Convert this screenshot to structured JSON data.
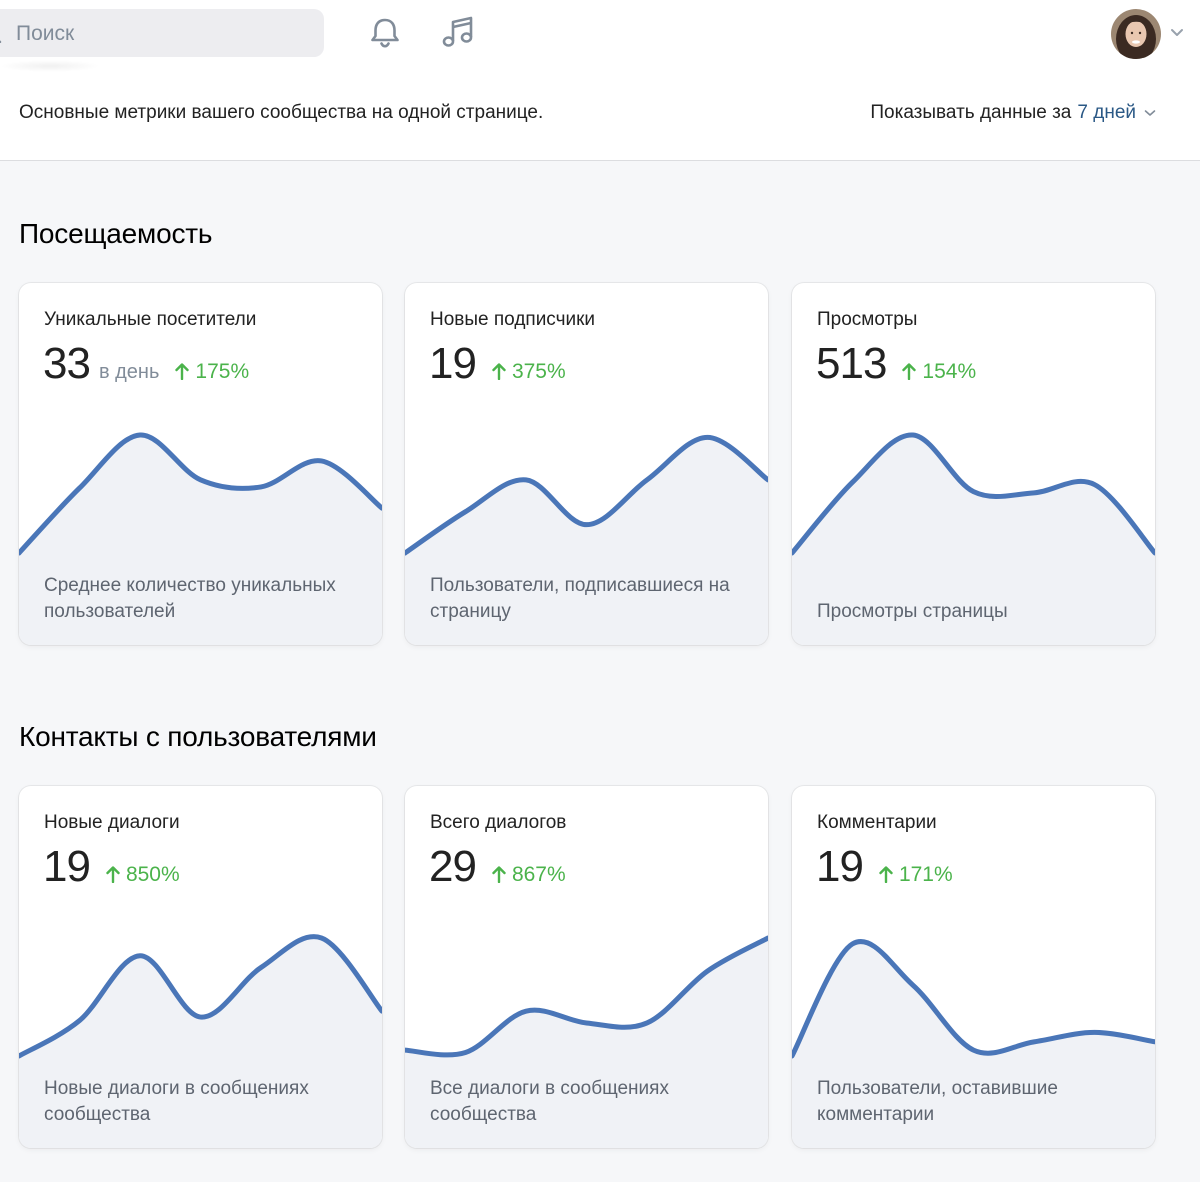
{
  "header": {
    "search_placeholder": "Поиск",
    "bell_icon": "bell-icon",
    "music_icon": "music-icon"
  },
  "subheader": {
    "description": "Основные метрики вашего сообщества на одной странице.",
    "period_label": "Показывать данные за",
    "period_value": "7 дней"
  },
  "sections": [
    {
      "title": "Посещаемость",
      "cards": [
        {
          "title": "Уникальные посетители",
          "value": "33",
          "unit": "в день",
          "delta": "175%",
          "description": "Среднее количество уникальных пользователей",
          "trend": [
            0.0,
            0.55,
            1.0,
            0.62,
            0.56,
            0.78,
            0.38
          ]
        },
        {
          "title": "Новые подписчики",
          "value": "19",
          "unit": "",
          "delta": "375%",
          "description": "Пользователи, подписавшиеся на страницу",
          "trend": [
            0.0,
            0.35,
            0.62,
            0.24,
            0.62,
            0.98,
            0.62
          ]
        },
        {
          "title": "Просмотры",
          "value": "513",
          "unit": "",
          "delta": "154%",
          "description": "Просмотры страницы",
          "trend": [
            0.0,
            0.6,
            1.0,
            0.52,
            0.51,
            0.58,
            0.0
          ]
        }
      ]
    },
    {
      "title": "Контакты с пользователями",
      "cards": [
        {
          "title": "Новые диалоги",
          "value": "19",
          "unit": "",
          "delta": "850%",
          "description": "Новые диалоги в сообщениях сообщества",
          "trend": [
            0.0,
            0.3,
            0.85,
            0.33,
            0.75,
            1.0,
            0.38
          ]
        },
        {
          "title": "Всего диалогов",
          "value": "29",
          "unit": "",
          "delta": "867%",
          "description": "Все диалоги в сообщениях сообщества",
          "trend": [
            0.05,
            0.03,
            0.38,
            0.28,
            0.28,
            0.72,
            1.0
          ]
        },
        {
          "title": "Комментарии",
          "value": "19",
          "unit": "",
          "delta": "171%",
          "description": "Пользователи, оставившие комментарии",
          "trend": [
            0.0,
            0.95,
            0.6,
            0.05,
            0.12,
            0.2,
            0.12
          ]
        }
      ]
    }
  ],
  "colors": {
    "line": "#4a76b8",
    "area": "#f0f2f6",
    "positive": "#4bb34b",
    "link": "#2a5885"
  }
}
